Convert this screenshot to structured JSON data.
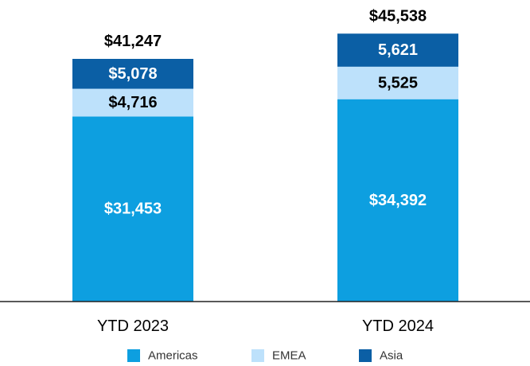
{
  "chart_data": {
    "type": "bar",
    "stacked": true,
    "categories": [
      "YTD 2023",
      "YTD 2024"
    ],
    "series": [
      {
        "name": "Americas",
        "color": "#0d9fe0",
        "text_color": "#ffffff",
        "values": [
          31453,
          34392
        ],
        "labels": [
          "$31,453",
          "$34,392"
        ]
      },
      {
        "name": "EMEA",
        "color": "#bde1fb",
        "text_color": "#000000",
        "values": [
          4716,
          5525
        ],
        "labels": [
          "$4,716",
          "5,525"
        ]
      },
      {
        "name": "Asia",
        "color": "#0b5fa5",
        "text_color": "#ffffff",
        "values": [
          5078,
          5621
        ],
        "labels": [
          "$5,078",
          "5,621"
        ]
      }
    ],
    "totals": [
      41247,
      45538
    ],
    "total_labels": [
      "$41,247",
      "$45,538"
    ],
    "ylim": [
      0,
      50000
    ],
    "grid": false,
    "legend_position": "bottom"
  }
}
